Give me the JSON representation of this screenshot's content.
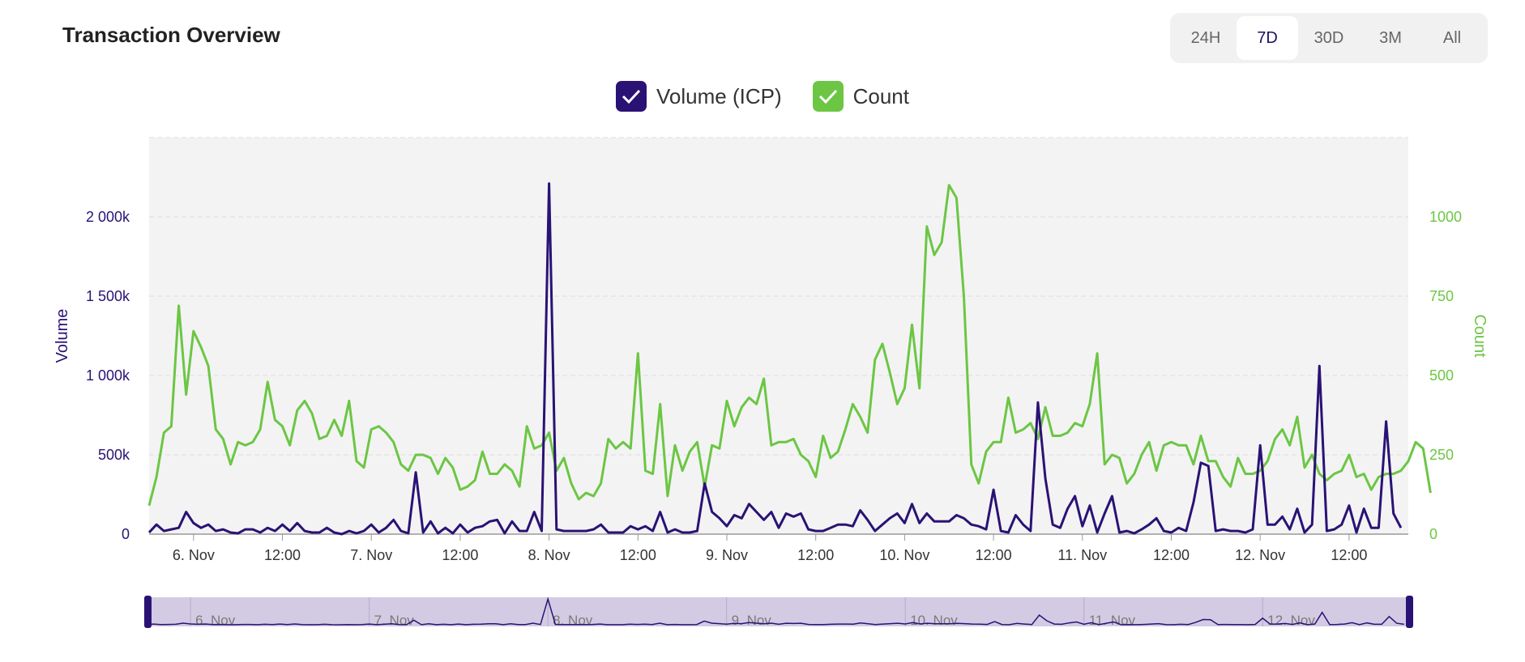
{
  "header": {
    "title": "Transaction Overview"
  },
  "range_selector": {
    "options": [
      "24H",
      "7D",
      "30D",
      "3M",
      "All"
    ],
    "selected": "7D"
  },
  "colors": {
    "volume": "#2a1275",
    "count": "#6cc644",
    "plot_bg": "#f3f3f3",
    "navigator_fill": "#d3cbe3"
  },
  "icons": {
    "legend_check": "checkmark-icon"
  },
  "chart_data": {
    "type": "line",
    "title": "",
    "x_start": "2023-11-05T18:00",
    "x_interval_hours": 1,
    "x_range": [
      "2023-11-05T18:00",
      "2023-11-12T20:00"
    ],
    "x_ticks": [
      "6. Nov",
      "12:00",
      "7. Nov",
      "12:00",
      "8. Nov",
      "12:00",
      "9. Nov",
      "12:00",
      "10. Nov",
      "12:00",
      "11. Nov",
      "12:00",
      "12. Nov",
      "12:00"
    ],
    "grid": true,
    "legend": "top-center",
    "y_axes": [
      {
        "label": "Volume",
        "side": "left",
        "range": [
          0,
          2500000
        ],
        "ticks": [
          0,
          500000,
          1000000,
          1500000,
          2000000
        ],
        "tick_labels": [
          "0",
          "500k",
          "1 000k",
          "1 500k",
          "2 000k"
        ]
      },
      {
        "label": "Count",
        "side": "right",
        "range": [
          0,
          1250
        ],
        "ticks": [
          0,
          250,
          500,
          750,
          1000
        ],
        "tick_labels": [
          "0",
          "250",
          "500",
          "750",
          "1000"
        ]
      }
    ],
    "series": [
      {
        "name": "Volume (ICP)",
        "axis": "left",
        "values": [
          10000,
          60000,
          20000,
          30000,
          40000,
          140000,
          70000,
          40000,
          60000,
          20000,
          30000,
          10000,
          5000,
          30000,
          30000,
          10000,
          40000,
          20000,
          60000,
          20000,
          70000,
          20000,
          10000,
          10000,
          40000,
          10000,
          0,
          20000,
          5000,
          20000,
          60000,
          10000,
          40000,
          90000,
          20000,
          5000,
          390000,
          10000,
          80000,
          5000,
          40000,
          5000,
          60000,
          10000,
          40000,
          50000,
          80000,
          90000,
          5000,
          80000,
          20000,
          20000,
          140000,
          20000,
          2210000,
          30000,
          20000,
          20000,
          20000,
          20000,
          30000,
          60000,
          10000,
          10000,
          10000,
          50000,
          30000,
          50000,
          20000,
          140000,
          10000,
          30000,
          10000,
          10000,
          20000,
          320000,
          140000,
          100000,
          50000,
          120000,
          100000,
          190000,
          140000,
          90000,
          140000,
          40000,
          130000,
          110000,
          130000,
          30000,
          20000,
          20000,
          40000,
          60000,
          60000,
          50000,
          150000,
          90000,
          20000,
          60000,
          100000,
          130000,
          70000,
          190000,
          70000,
          130000,
          80000,
          80000,
          80000,
          120000,
          100000,
          60000,
          50000,
          30000,
          280000,
          20000,
          10000,
          120000,
          60000,
          20000,
          830000,
          350000,
          60000,
          40000,
          160000,
          240000,
          50000,
          180000,
          10000,
          130000,
          240000,
          10000,
          20000,
          5000,
          30000,
          60000,
          100000,
          20000,
          10000,
          40000,
          20000,
          200000,
          450000,
          430000,
          20000,
          30000,
          20000,
          20000,
          10000,
          30000,
          560000,
          60000,
          60000,
          110000,
          30000,
          160000,
          10000,
          60000,
          1060000,
          20000,
          30000,
          60000,
          180000,
          10000,
          160000,
          40000,
          40000,
          710000,
          130000,
          40000
        ],
        "color": "#2a1275"
      },
      {
        "name": "Count",
        "axis": "right",
        "values": [
          90,
          180,
          320,
          340,
          720,
          440,
          640,
          590,
          530,
          330,
          300,
          220,
          290,
          280,
          290,
          330,
          480,
          360,
          340,
          280,
          390,
          420,
          380,
          300,
          310,
          360,
          310,
          420,
          230,
          210,
          330,
          340,
          320,
          290,
          220,
          200,
          250,
          250,
          240,
          190,
          240,
          210,
          140,
          150,
          170,
          260,
          190,
          190,
          220,
          200,
          150,
          340,
          270,
          280,
          320,
          200,
          240,
          160,
          110,
          130,
          120,
          160,
          300,
          270,
          290,
          270,
          570,
          200,
          190,
          410,
          120,
          280,
          200,
          260,
          290,
          150,
          280,
          270,
          420,
          340,
          400,
          430,
          410,
          490,
          280,
          290,
          290,
          300,
          250,
          230,
          180,
          310,
          240,
          260,
          330,
          410,
          370,
          320,
          550,
          600,
          510,
          410,
          460,
          660,
          460,
          970,
          880,
          920,
          1100,
          1060,
          750,
          220,
          160,
          260,
          290,
          290,
          430,
          320,
          330,
          350,
          300,
          400,
          310,
          310,
          320,
          350,
          340,
          410,
          570,
          220,
          250,
          240,
          160,
          190,
          250,
          290,
          200,
          280,
          290,
          280,
          280,
          220,
          310,
          230,
          230,
          180,
          150,
          240,
          190,
          190,
          200,
          230,
          300,
          330,
          280,
          370,
          210,
          250,
          190,
          170,
          190,
          200,
          250,
          180,
          190,
          140,
          180,
          190,
          190,
          200,
          230,
          290,
          270,
          130
        ]
      }
    ],
    "navigator": {
      "series": "Volume (ICP)",
      "labels": [
        "6. Nov",
        "7. Nov",
        "8. Nov",
        "9. Nov",
        "10. Nov",
        "11. Nov",
        "12. Nov"
      ]
    }
  }
}
